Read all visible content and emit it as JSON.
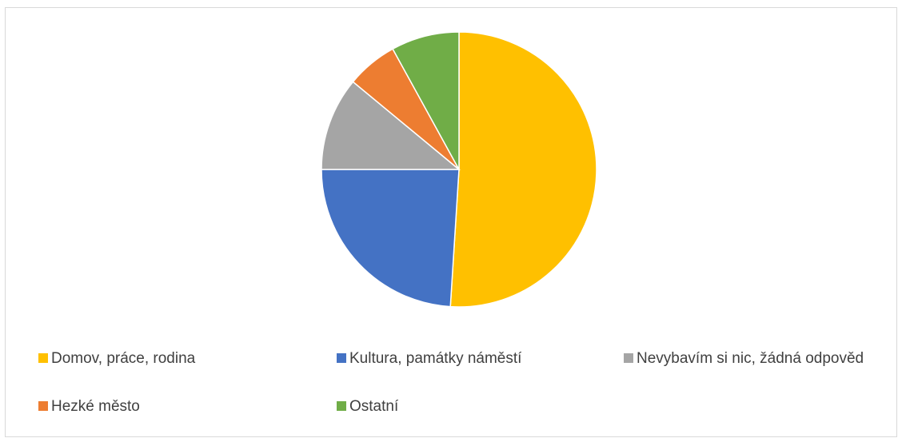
{
  "chart_data": {
    "type": "pie",
    "categories": [
      "Domov, práce, rodina",
      "Kultura, památky náměstí",
      "Nevybavím si nic, žádná odpověd",
      "Hezké město",
      "Ostatní"
    ],
    "values": [
      51,
      24,
      11,
      6,
      8
    ],
    "colors": [
      "#ffc000",
      "#4472c4",
      "#a5a5a5",
      "#ed7d31",
      "#70ad47"
    ],
    "legend": "bottom"
  }
}
